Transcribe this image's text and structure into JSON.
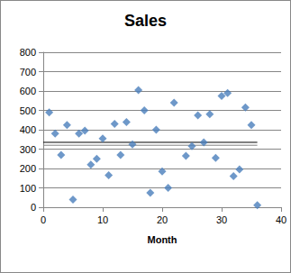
{
  "chart_data": {
    "type": "scatter",
    "title": "Sales",
    "x_label": "Month",
    "xlim": [
      0,
      40
    ],
    "xticks": [
      0,
      10,
      20,
      30,
      40
    ],
    "ylim": [
      0,
      800
    ],
    "yticks": [
      0,
      100,
      200,
      300,
      400,
      500,
      600,
      700,
      800
    ],
    "grid": true,
    "series": [
      {
        "type": "scatter",
        "color": "#4a7ebb",
        "marker": "diamond",
        "x": [
          1,
          2,
          3,
          4,
          5,
          6,
          7,
          8,
          9,
          10,
          11,
          12,
          13,
          14,
          15,
          16,
          17,
          18,
          19,
          20,
          21,
          22,
          24,
          25,
          26,
          27,
          28,
          29,
          30,
          31,
          32,
          33,
          34,
          35,
          36
        ],
        "values": [
          490,
          380,
          270,
          425,
          40,
          380,
          395,
          220,
          250,
          355,
          165,
          430,
          270,
          440,
          325,
          605,
          500,
          75,
          400,
          185,
          100,
          540,
          265,
          315,
          475,
          335,
          480,
          255,
          575,
          590,
          160,
          195,
          515,
          425,
          10
        ]
      },
      {
        "type": "line",
        "color": "#000000",
        "line_style": "solid",
        "x": [
          0,
          36
        ],
        "values": [
          335,
          335
        ]
      },
      {
        "type": "line",
        "color": "#808080",
        "line_style": "solid",
        "x": [
          0,
          36
        ],
        "values": [
          320,
          320
        ]
      }
    ]
  }
}
